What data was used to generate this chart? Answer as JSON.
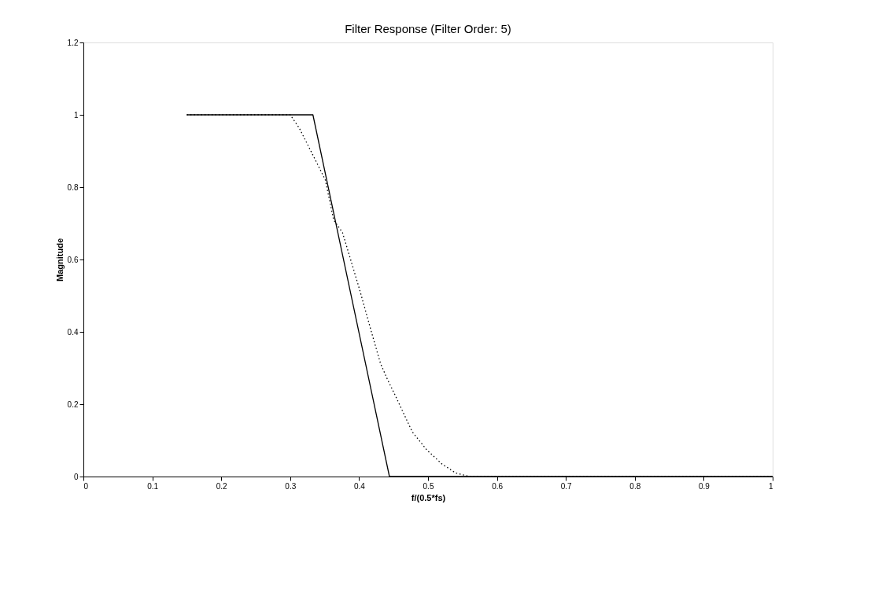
{
  "chart_data": {
    "type": "line",
    "title": "Filter Response (Filter Order: 5)",
    "xlabel": "f/(0.5*fs)",
    "ylabel": "Magnitude",
    "xlim": [
      0,
      1
    ],
    "xticks": [
      0,
      0.1,
      0.2,
      0.3,
      0.4,
      0.5,
      0.6,
      0.7,
      0.8,
      0.9,
      1
    ],
    "ylim": [
      0,
      1.2
    ],
    "yticks": [
      0,
      0.2,
      0.4,
      0.6,
      0.8,
      1,
      1.2
    ],
    "grid": false,
    "series": [
      {
        "color": "#000000",
        "line_style": "solid",
        "x": [
          0.15,
          0.333,
          0.444,
          1
        ],
        "values": [
          1,
          1,
          0,
          0
        ]
      },
      {
        "color": "#000000",
        "line_style": "dotted",
        "x": [
          0.15,
          0.3,
          0.313,
          0.33,
          0.351,
          0.363,
          0.376,
          0.393,
          0.401,
          0.418,
          0.431,
          0.441,
          0.452,
          0.477,
          0.498,
          0.52,
          0.54,
          0.56,
          1
        ],
        "values": [
          1,
          1,
          0.964,
          0.9,
          0.82,
          0.71,
          0.674,
          0.566,
          0.515,
          0.399,
          0.313,
          0.269,
          0.226,
          0.124,
          0.074,
          0.035,
          0.01,
          0,
          0
        ]
      }
    ]
  }
}
